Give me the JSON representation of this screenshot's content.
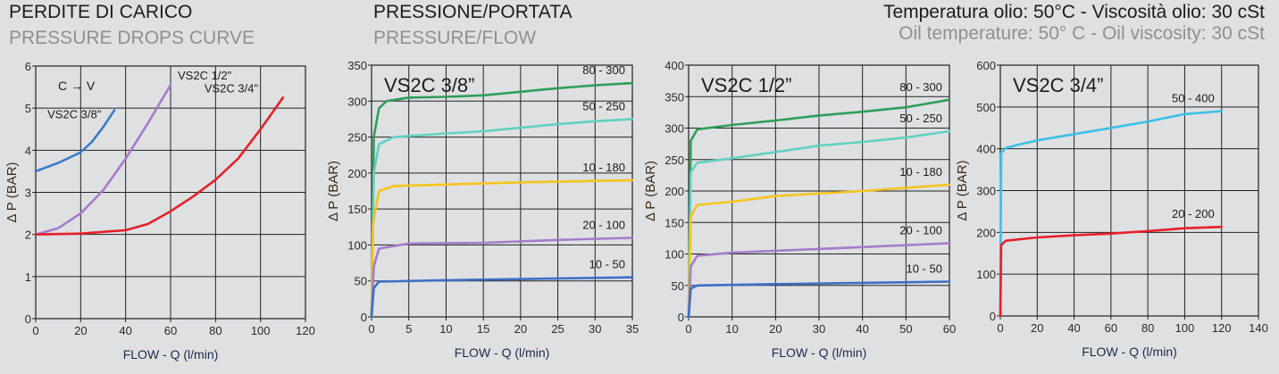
{
  "header": {
    "left_title": "PERDITE DI CARICO",
    "left_subtitle": "PRESSURE DROPS CURVE",
    "mid_title": "PRESSIONE/PORTATA",
    "mid_subtitle": "PRESSURE/FLOW",
    "right_title": "Temperatura olio: 50°C - Viscosità olio: 30 cSt",
    "right_subtitle": "Oil temperature: 50° C - Oil viscosity: 30 cSt"
  },
  "chart_data": [
    {
      "type": "line",
      "title": "",
      "annotation": "C → V",
      "xlabel": "FLOW - Q (l/min)",
      "ylabel": "Δ P (BAR)",
      "xlim": [
        0,
        120
      ],
      "ylim": [
        0,
        6
      ],
      "xticks": [
        0,
        20,
        40,
        60,
        80,
        100,
        120
      ],
      "yticks": [
        0,
        1,
        2,
        3,
        4,
        5,
        6
      ],
      "grid": true,
      "series": [
        {
          "name": "VS2C 3/8\"",
          "color": "#3d7bc9",
          "x": [
            0,
            10,
            20,
            25,
            30,
            35
          ],
          "y": [
            3.5,
            3.7,
            3.95,
            4.2,
            4.55,
            4.95
          ]
        },
        {
          "name": "VS2C 1/2\"",
          "color": "#a57cc8",
          "x": [
            0,
            10,
            20,
            30,
            40,
            50,
            60
          ],
          "y": [
            2,
            2.15,
            2.5,
            3.05,
            3.8,
            4.65,
            5.55
          ]
        },
        {
          "name": "VS2C 3/4\"",
          "color": "#e6202a",
          "x": [
            0,
            20,
            40,
            50,
            60,
            70,
            80,
            90,
            100,
            110
          ],
          "y": [
            2,
            2.02,
            2.1,
            2.25,
            2.55,
            2.9,
            3.3,
            3.8,
            4.5,
            5.25
          ]
        }
      ]
    },
    {
      "type": "line",
      "title": "VS2C 3/8”",
      "xlabel": "FLOW - Q (l/min)",
      "ylabel": "Δ P (BAR)",
      "xlim": [
        0,
        35
      ],
      "ylim": [
        0,
        350
      ],
      "xticks": [
        0,
        5,
        10,
        15,
        20,
        25,
        30,
        35
      ],
      "yticks": [
        0,
        50,
        100,
        150,
        200,
        250,
        300,
        350
      ],
      "grid": true,
      "series": [
        {
          "name": "80 - 300",
          "color": "#2f9e5a",
          "x": [
            0,
            0.3,
            1,
            2,
            5,
            10,
            15,
            20,
            25,
            30,
            35
          ],
          "y": [
            0,
            250,
            290,
            300,
            305,
            306,
            308,
            313,
            318,
            322,
            325
          ]
        },
        {
          "name": "50 - 250",
          "color": "#62d0c2",
          "x": [
            0,
            0.3,
            1,
            3,
            10,
            15,
            20,
            25,
            30,
            35
          ],
          "y": [
            0,
            200,
            240,
            250,
            255,
            258,
            263,
            268,
            272,
            275
          ]
        },
        {
          "name": "10 - 180",
          "color": "#f5c41c",
          "x": [
            0,
            0.2,
            1,
            3,
            10,
            20,
            35
          ],
          "y": [
            0,
            130,
            175,
            182,
            184,
            187,
            190
          ]
        },
        {
          "name": "20 - 100",
          "color": "#a57cc8",
          "x": [
            0,
            0.3,
            1,
            5,
            15,
            25,
            35
          ],
          "y": [
            0,
            70,
            95,
            102,
            103,
            107,
            110
          ]
        },
        {
          "name": "10 - 50",
          "color": "#3b6fc4",
          "x": [
            0,
            0.3,
            1,
            10,
            35
          ],
          "y": [
            0,
            40,
            49,
            51,
            55
          ]
        }
      ]
    },
    {
      "type": "line",
      "title": "VS2C 1/2”",
      "xlabel": "FLOW - Q (l/min)",
      "ylabel": "Δ P (BAR)",
      "xlim": [
        0,
        60
      ],
      "ylim": [
        0,
        400
      ],
      "xticks": [
        0,
        10,
        20,
        30,
        40,
        50,
        60
      ],
      "yticks": [
        0,
        50,
        100,
        150,
        200,
        250,
        300,
        350,
        400
      ],
      "grid": true,
      "series": [
        {
          "name": "80 - 300",
          "color": "#2f9e5a",
          "x": [
            0,
            0.5,
            2,
            10,
            20,
            30,
            40,
            50,
            60
          ],
          "y": [
            0,
            280,
            298,
            305,
            312,
            320,
            326,
            333,
            345
          ]
        },
        {
          "name": "50 - 250",
          "color": "#62d0c2",
          "x": [
            0,
            0.5,
            2,
            10,
            20,
            30,
            40,
            50,
            60
          ],
          "y": [
            0,
            230,
            245,
            252,
            262,
            272,
            278,
            285,
            295
          ]
        },
        {
          "name": "10 - 180",
          "color": "#f5c41c",
          "x": [
            0,
            0.5,
            2,
            10,
            20,
            40,
            60
          ],
          "y": [
            0,
            160,
            178,
            183,
            192,
            200,
            210
          ]
        },
        {
          "name": "20 - 100",
          "color": "#a57cc8",
          "x": [
            0,
            0.5,
            2,
            10,
            30,
            60
          ],
          "y": [
            0,
            80,
            97,
            102,
            108,
            117
          ]
        },
        {
          "name": "10 - 50",
          "color": "#3b6fc4",
          "x": [
            0,
            0.5,
            2,
            20,
            60
          ],
          "y": [
            0,
            45,
            50,
            52,
            56
          ]
        }
      ]
    },
    {
      "type": "line",
      "title": "VS2C 3/4”",
      "xlabel": "FLOW - Q (l/min)",
      "ylabel": "Δ P (BAR)",
      "xlim": [
        0,
        140
      ],
      "ylim": [
        0,
        600
      ],
      "xticks": [
        0,
        20,
        40,
        60,
        80,
        100,
        120,
        140
      ],
      "yticks": [
        0,
        100,
        200,
        300,
        400,
        500,
        600
      ],
      "grid": true,
      "series": [
        {
          "name": "50 - 400",
          "color": "#3cc0e6",
          "x": [
            0,
            0.5,
            3,
            10,
            20,
            40,
            60,
            80,
            100,
            120
          ],
          "y": [
            0,
            390,
            402,
            410,
            420,
            435,
            450,
            465,
            483,
            490
          ]
        },
        {
          "name": "20 - 200",
          "color": "#e6202a",
          "x": [
            0,
            0.5,
            3,
            20,
            40,
            60,
            80,
            100,
            120
          ],
          "y": [
            0,
            170,
            180,
            188,
            193,
            197,
            203,
            210,
            213
          ]
        }
      ]
    }
  ]
}
